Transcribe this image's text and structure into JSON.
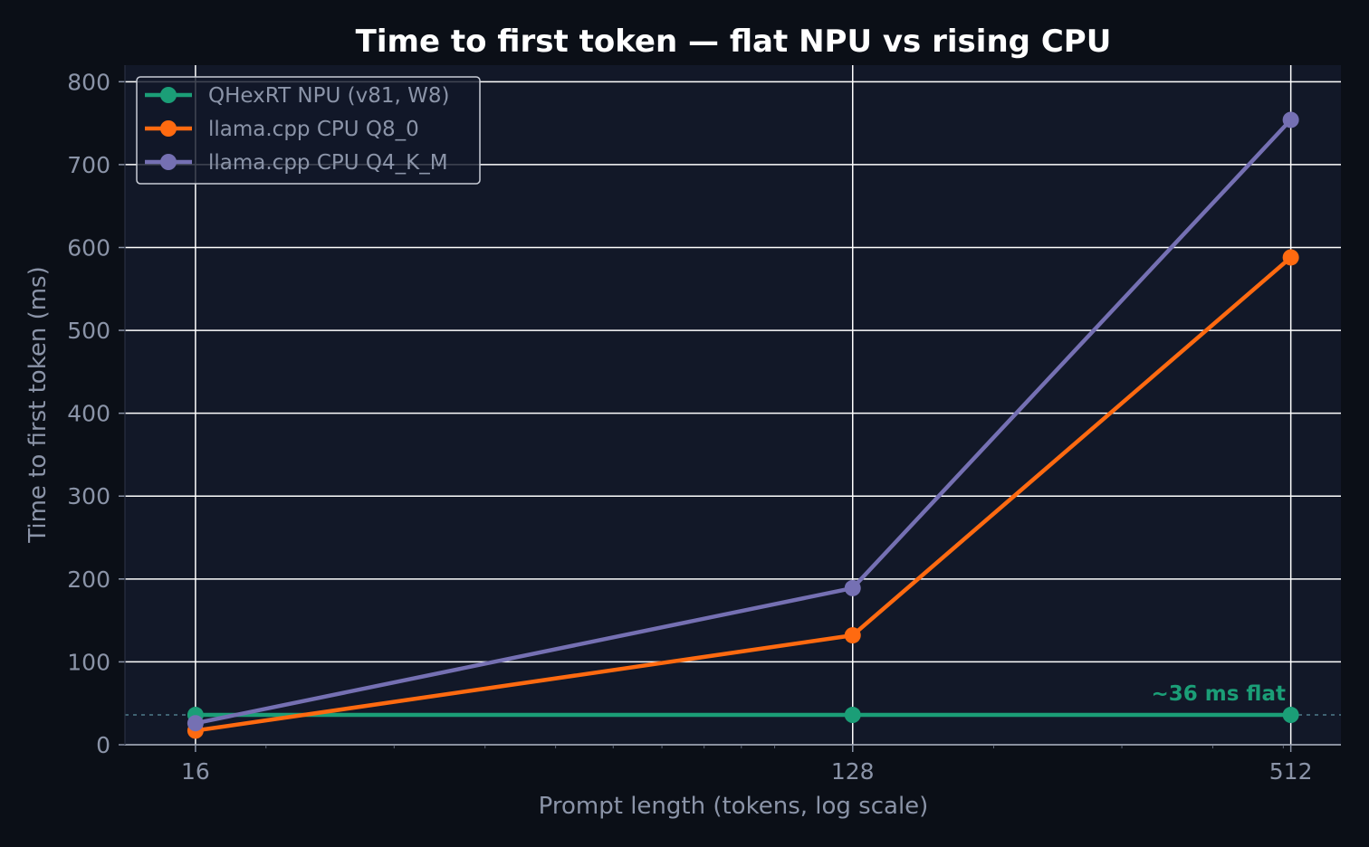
{
  "chart_data": {
    "type": "line",
    "title": "Time to first token — flat NPU vs rising CPU",
    "xlabel": "Prompt length (tokens, log scale)",
    "ylabel": "Time to first token (ms)",
    "xscale": "log",
    "x": [
      16,
      128,
      512
    ],
    "x_tick_labels": [
      "16",
      "128",
      "512"
    ],
    "xlim": [
      12.8,
      600
    ],
    "ylim": [
      0,
      820
    ],
    "y_ticks": [
      0,
      100,
      200,
      300,
      400,
      500,
      600,
      700,
      800
    ],
    "grid": true,
    "legend_position": "top-left",
    "series": [
      {
        "name": "QHexRT NPU (v81, W8)",
        "color": "#1b9e77",
        "values": [
          36,
          36,
          36
        ]
      },
      {
        "name": "llama.cpp CPU Q8_0",
        "color": "#ff6a10",
        "values": [
          17,
          132,
          588
        ]
      },
      {
        "name": "llama.cpp CPU Q4_K_M",
        "color": "#7570b3",
        "values": [
          26,
          189,
          754
        ]
      }
    ],
    "reference_line": {
      "value": 36,
      "color": "#3f6272"
    },
    "annotation": {
      "text": "~36 ms flat",
      "color": "#1b9e77",
      "x": 512,
      "y": 36
    }
  },
  "colors": {
    "background": "#0b0f17",
    "plot_background": "#121828",
    "grid": "#ffffff",
    "text": "#8b94a8"
  }
}
